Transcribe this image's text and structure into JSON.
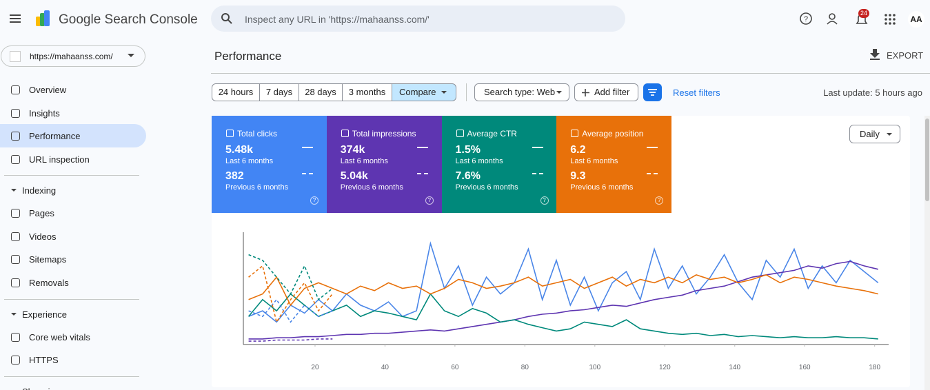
{
  "header": {
    "product": "Google Search Console",
    "search_placeholder": "Inspect any URL in 'https://mahaanss.com/'",
    "notifications": "24",
    "avatar": "AA"
  },
  "property": "https://mahaanss.com/",
  "nav": {
    "items": [
      "Overview",
      "Insights",
      "Performance",
      "URL inspection"
    ],
    "active": 2,
    "sections": [
      {
        "title": "Indexing",
        "items": [
          "Pages",
          "Videos",
          "Sitemaps",
          "Removals"
        ]
      },
      {
        "title": "Experience",
        "items": [
          "Core web vitals",
          "HTTPS"
        ]
      },
      {
        "title": "Shopping",
        "items": []
      }
    ]
  },
  "page": {
    "title": "Performance",
    "export": "EXPORT",
    "date_ranges": [
      "24 hours",
      "7 days",
      "28 days",
      "3 months",
      "Compare"
    ],
    "selected_range": 4,
    "search_type": "Search type: Web",
    "add_filter": "Add filter",
    "reset": "Reset filters",
    "last_update": "Last update: 5 hours ago",
    "granularity": "Daily"
  },
  "metrics": [
    {
      "name": "Total clicks",
      "current": "5.48k",
      "current_period": "Last 6 months",
      "previous": "382",
      "previous_period": "Previous 6 months",
      "color": "#4285f4"
    },
    {
      "name": "Total impressions",
      "current": "374k",
      "current_period": "Last 6 months",
      "previous": "5.04k",
      "previous_period": "Previous 6 months",
      "color": "#5e35b1"
    },
    {
      "name": "Average CTR",
      "current": "1.5%",
      "current_period": "Last 6 months",
      "previous": "7.6%",
      "previous_period": "Previous 6 months",
      "color": "#00897b"
    },
    {
      "name": "Average position",
      "current": "6.2",
      "current_period": "Last 6 months",
      "previous": "9.3",
      "previous_period": "Previous 6 months",
      "color": "#e8710a"
    }
  ],
  "chart_data": {
    "type": "line",
    "x": [
      1,
      5,
      9,
      13,
      17,
      21,
      25,
      29,
      33,
      37,
      41,
      45,
      49,
      53,
      57,
      61,
      65,
      69,
      73,
      77,
      81,
      85,
      89,
      93,
      97,
      101,
      105,
      109,
      113,
      117,
      121,
      125,
      129,
      133,
      137,
      141,
      145,
      149,
      153,
      157,
      161,
      165,
      169,
      173,
      177,
      181
    ],
    "xlim": [
      0,
      184
    ],
    "xticks": [
      20,
      40,
      60,
      80,
      100,
      120,
      140,
      160,
      180
    ],
    "ylim": [
      0,
      100
    ],
    "series": [
      {
        "color": "#4a86e8",
        "dashed": false,
        "values": [
          25,
          30,
          20,
          35,
          28,
          40,
          30,
          45,
          35,
          30,
          38,
          25,
          30,
          90,
          50,
          70,
          35,
          60,
          45,
          55,
          85,
          40,
          75,
          35,
          60,
          30,
          55,
          65,
          40,
          85,
          50,
          70,
          45,
          60,
          80,
          55,
          40,
          75,
          60,
          85,
          50,
          70,
          55,
          75,
          65,
          55
        ]
      },
      {
        "color": "#5e35b1",
        "dashed": false,
        "values": [
          5,
          5,
          6,
          6,
          7,
          7,
          8,
          9,
          9,
          10,
          10,
          11,
          12,
          13,
          12,
          14,
          16,
          18,
          20,
          22,
          25,
          27,
          28,
          30,
          31,
          33,
          35,
          34,
          37,
          40,
          42,
          44,
          48,
          50,
          52,
          56,
          60,
          62,
          64,
          66,
          70,
          68,
          72,
          74,
          70,
          67
        ]
      },
      {
        "color": "#00897b",
        "dashed": false,
        "values": [
          25,
          40,
          30,
          45,
          35,
          25,
          30,
          35,
          25,
          30,
          28,
          25,
          22,
          45,
          30,
          25,
          32,
          28,
          20,
          22,
          18,
          15,
          12,
          14,
          20,
          18,
          16,
          22,
          14,
          12,
          10,
          9,
          10,
          8,
          9,
          7,
          8,
          7,
          6,
          7,
          6,
          6,
          7,
          6,
          6,
          5
        ]
      },
      {
        "color": "#e8710a",
        "dashed": false,
        "values": [
          40,
          45,
          60,
          35,
          50,
          55,
          50,
          45,
          52,
          48,
          55,
          50,
          52,
          45,
          50,
          58,
          55,
          50,
          52,
          55,
          60,
          52,
          55,
          58,
          50,
          55,
          60,
          52,
          58,
          55,
          60,
          55,
          62,
          58,
          60,
          55,
          58,
          62,
          55,
          60,
          58,
          55,
          52,
          50,
          48,
          45
        ]
      },
      {
        "color": "#4a86e8",
        "dashed": true,
        "values": [
          30,
          25,
          40,
          20,
          35,
          25,
          30,
          null,
          null,
          null,
          null,
          null,
          null,
          null,
          null,
          null,
          null,
          null,
          null,
          null,
          null,
          null,
          null,
          null,
          null,
          null,
          null,
          null,
          null,
          null,
          null,
          null,
          null,
          null,
          null,
          null,
          null,
          null,
          null,
          null,
          null,
          null,
          null,
          null,
          null,
          null
        ]
      },
      {
        "color": "#5e35b1",
        "dashed": true,
        "values": [
          3,
          3,
          4,
          4,
          4,
          5,
          5,
          null,
          null,
          null,
          null,
          null,
          null,
          null,
          null,
          null,
          null,
          null,
          null,
          null,
          null,
          null,
          null,
          null,
          null,
          null,
          null,
          null,
          null,
          null,
          null,
          null,
          null,
          null,
          null,
          null,
          null,
          null,
          null,
          null,
          null,
          null,
          null,
          null,
          null,
          null
        ]
      },
      {
        "color": "#00897b",
        "dashed": true,
        "values": [
          80,
          75,
          60,
          45,
          70,
          40,
          50,
          null,
          null,
          null,
          null,
          null,
          null,
          null,
          null,
          null,
          null,
          null,
          null,
          null,
          null,
          null,
          null,
          null,
          null,
          null,
          null,
          null,
          null,
          null,
          null,
          null,
          null,
          null,
          null,
          null,
          null,
          null,
          null,
          null,
          null,
          null,
          null,
          null,
          null,
          null
        ]
      },
      {
        "color": "#e8710a",
        "dashed": true,
        "values": [
          60,
          70,
          20,
          40,
          55,
          30,
          45,
          null,
          null,
          null,
          null,
          null,
          null,
          null,
          null,
          null,
          null,
          null,
          null,
          null,
          null,
          null,
          null,
          null,
          null,
          null,
          null,
          null,
          null,
          null,
          null,
          null,
          null,
          null,
          null,
          null,
          null,
          null,
          null,
          null,
          null,
          null,
          null,
          null,
          null,
          null
        ]
      }
    ]
  }
}
